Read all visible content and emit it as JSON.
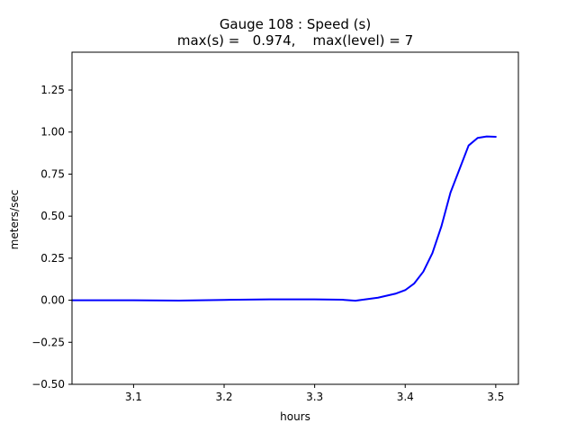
{
  "chart_data": {
    "type": "line",
    "title": "Gauge 108 : Speed (s)",
    "subtitle": "max(s) =   0.974,    max(level) = 7",
    "xlabel": "hours",
    "ylabel": "meters/sec",
    "xlim": [
      3.032,
      3.525
    ],
    "ylim": [
      -0.5,
      1.475
    ],
    "xticks": [
      3.1,
      3.2,
      3.3,
      3.4,
      3.5
    ],
    "xtick_labels": [
      "3.1",
      "3.2",
      "3.3",
      "3.4",
      "3.5"
    ],
    "yticks": [
      -0.5,
      -0.25,
      0.0,
      0.25,
      0.5,
      0.75,
      1.0,
      1.25
    ],
    "ytick_labels": [
      "−0.50",
      "−0.25",
      "0.00",
      "0.25",
      "0.50",
      "0.75",
      "1.00",
      "1.25"
    ],
    "grid": false,
    "series": [
      {
        "color": "#0000ff",
        "x": [
          3.032,
          3.1,
          3.15,
          3.2,
          3.25,
          3.3,
          3.33,
          3.345,
          3.37,
          3.39,
          3.4,
          3.41,
          3.42,
          3.43,
          3.44,
          3.45,
          3.46,
          3.47,
          3.48,
          3.49,
          3.5
        ],
        "y": [
          0.0,
          0.0,
          -0.002,
          0.002,
          0.005,
          0.005,
          0.003,
          -0.003,
          0.015,
          0.04,
          0.06,
          0.1,
          0.17,
          0.28,
          0.44,
          0.64,
          0.78,
          0.92,
          0.965,
          0.974,
          0.972
        ]
      }
    ]
  }
}
